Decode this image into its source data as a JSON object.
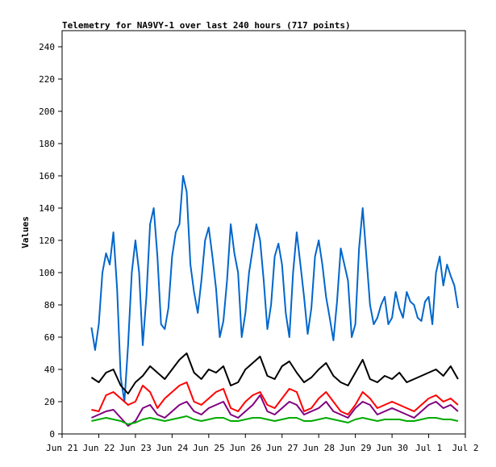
{
  "chart_data": {
    "type": "line",
    "title": "Telemetry for NA9VY-1 over last 240 hours (717 points)",
    "xlabel": "",
    "ylabel": "Values",
    "ylim": [
      0,
      250
    ],
    "yticks": [
      0,
      20,
      40,
      60,
      80,
      100,
      120,
      140,
      160,
      180,
      200,
      220,
      240
    ],
    "x_ticks": [
      "Jun 21",
      "Jun 22",
      "Jun 23",
      "Jun 24",
      "Jun 25",
      "Jun 26",
      "Jun 27",
      "Jun 28",
      "Jun 29",
      "Jun 30",
      "Jul 1",
      "Jul 2"
    ],
    "xlim": [
      "Jun 21",
      "Jul 2"
    ],
    "grid": false,
    "legend": "none",
    "series": [
      {
        "color": "#0066cc",
        "x": [
          21.8,
          21.9,
          22.0,
          22.1,
          22.2,
          22.3,
          22.4,
          22.5,
          22.6,
          22.7,
          22.8,
          22.9,
          23.0,
          23.1,
          23.2,
          23.3,
          23.4,
          23.5,
          23.6,
          23.7,
          23.8,
          23.9,
          24.0,
          24.1,
          24.2,
          24.3,
          24.4,
          24.5,
          24.6,
          24.7,
          24.8,
          24.9,
          25.0,
          25.1,
          25.2,
          25.3,
          25.4,
          25.5,
          25.6,
          25.7,
          25.8,
          25.9,
          26.0,
          26.1,
          26.2,
          26.3,
          26.4,
          26.5,
          26.6,
          26.7,
          26.8,
          26.9,
          27.0,
          27.1,
          27.2,
          27.3,
          27.4,
          27.5,
          27.6,
          27.7,
          27.8,
          27.9,
          28.0,
          28.1,
          28.2,
          28.3,
          28.4,
          28.5,
          28.6,
          28.7,
          28.8,
          28.9,
          29.0,
          29.1,
          29.2,
          29.3,
          29.4,
          29.5,
          29.6,
          29.7,
          29.8,
          29.9,
          30.0,
          30.1,
          30.2,
          30.3,
          30.4,
          30.5,
          30.6,
          30.7,
          30.8,
          30.9,
          31.0,
          31.1,
          31.2,
          31.3,
          31.4,
          31.5,
          31.6,
          31.7,
          31.8
        ],
        "values": [
          66,
          52,
          68,
          100,
          112,
          105,
          125,
          90,
          35,
          20,
          55,
          100,
          120,
          100,
          55,
          85,
          130,
          140,
          110,
          68,
          65,
          78,
          110,
          125,
          130,
          160,
          150,
          105,
          88,
          75,
          95,
          120,
          128,
          110,
          90,
          60,
          70,
          95,
          130,
          112,
          100,
          60,
          75,
          100,
          115,
          130,
          120,
          95,
          65,
          80,
          110,
          118,
          105,
          75,
          60,
          100,
          125,
          105,
          85,
          62,
          78,
          110,
          120,
          105,
          85,
          72,
          58,
          82,
          115,
          105,
          95,
          60,
          68,
          115,
          140,
          110,
          80,
          68,
          72,
          80,
          85,
          68,
          72,
          88,
          78,
          72,
          88,
          82,
          80,
          72,
          70,
          82,
          85,
          68,
          100,
          110,
          92,
          105,
          98,
          92,
          78
        ]
      },
      {
        "color": "#000000",
        "x": [
          21.8,
          22.0,
          22.2,
          22.4,
          22.6,
          22.8,
          23.0,
          23.2,
          23.4,
          23.6,
          23.8,
          24.0,
          24.2,
          24.4,
          24.6,
          24.8,
          25.0,
          25.2,
          25.4,
          25.6,
          25.8,
          26.0,
          26.2,
          26.4,
          26.6,
          26.8,
          27.0,
          27.2,
          27.4,
          27.6,
          27.8,
          28.0,
          28.2,
          28.4,
          28.6,
          28.8,
          29.0,
          29.2,
          29.4,
          29.6,
          29.8,
          30.0,
          30.2,
          30.4,
          30.6,
          30.8,
          31.0,
          31.2,
          31.4,
          31.6,
          31.8
        ],
        "values": [
          35,
          32,
          38,
          40,
          30,
          25,
          32,
          36,
          42,
          38,
          34,
          40,
          46,
          50,
          38,
          34,
          40,
          38,
          42,
          30,
          32,
          40,
          44,
          48,
          36,
          34,
          42,
          45,
          38,
          32,
          35,
          40,
          44,
          36,
          32,
          30,
          38,
          46,
          34,
          32,
          36,
          34,
          38,
          32,
          34,
          36,
          38,
          40,
          36,
          42,
          34
        ]
      },
      {
        "color": "#ff0000",
        "x": [
          21.8,
          22.0,
          22.2,
          22.4,
          22.6,
          22.8,
          23.0,
          23.2,
          23.4,
          23.6,
          23.8,
          24.0,
          24.2,
          24.4,
          24.6,
          24.8,
          25.0,
          25.2,
          25.4,
          25.6,
          25.8,
          26.0,
          26.2,
          26.4,
          26.6,
          26.8,
          27.0,
          27.2,
          27.4,
          27.6,
          27.8,
          28.0,
          28.2,
          28.4,
          28.6,
          28.8,
          29.0,
          29.2,
          29.4,
          29.6,
          29.8,
          30.0,
          30.2,
          30.4,
          30.6,
          30.8,
          31.0,
          31.2,
          31.4,
          31.6,
          31.8
        ],
        "values": [
          15,
          14,
          24,
          26,
          22,
          18,
          20,
          30,
          26,
          16,
          22,
          26,
          30,
          32,
          20,
          18,
          22,
          26,
          28,
          16,
          14,
          20,
          24,
          26,
          18,
          16,
          22,
          28,
          26,
          14,
          16,
          22,
          26,
          20,
          14,
          12,
          18,
          26,
          22,
          16,
          18,
          20,
          18,
          16,
          14,
          18,
          22,
          24,
          20,
          22,
          18
        ]
      },
      {
        "color": "#800080",
        "x": [
          21.8,
          22.0,
          22.2,
          22.4,
          22.6,
          22.8,
          23.0,
          23.2,
          23.4,
          23.6,
          23.8,
          24.0,
          24.2,
          24.4,
          24.6,
          24.8,
          25.0,
          25.2,
          25.4,
          25.6,
          25.8,
          26.0,
          26.2,
          26.4,
          26.6,
          26.8,
          27.0,
          27.2,
          27.4,
          27.6,
          27.8,
          28.0,
          28.2,
          28.4,
          28.6,
          28.8,
          29.0,
          29.2,
          29.4,
          29.6,
          29.8,
          30.0,
          30.2,
          30.4,
          30.6,
          30.8,
          31.0,
          31.2,
          31.4,
          31.6,
          31.8
        ],
        "values": [
          10,
          12,
          14,
          15,
          10,
          5,
          8,
          16,
          18,
          12,
          10,
          14,
          18,
          20,
          14,
          12,
          16,
          18,
          20,
          12,
          10,
          14,
          18,
          24,
          14,
          12,
          16,
          20,
          18,
          12,
          14,
          16,
          20,
          14,
          12,
          10,
          16,
          20,
          18,
          12,
          14,
          16,
          14,
          12,
          10,
          14,
          18,
          20,
          16,
          18,
          14
        ]
      },
      {
        "color": "#00aa00",
        "x": [
          21.8,
          22.0,
          22.2,
          22.4,
          22.6,
          22.8,
          23.0,
          23.2,
          23.4,
          23.6,
          23.8,
          24.0,
          24.2,
          24.4,
          24.6,
          24.8,
          25.0,
          25.2,
          25.4,
          25.6,
          25.8,
          26.0,
          26.2,
          26.4,
          26.6,
          26.8,
          27.0,
          27.2,
          27.4,
          27.6,
          27.8,
          28.0,
          28.2,
          28.4,
          28.6,
          28.8,
          29.0,
          29.2,
          29.4,
          29.6,
          29.8,
          30.0,
          30.2,
          30.4,
          30.6,
          30.8,
          31.0,
          31.2,
          31.4,
          31.6,
          31.8
        ],
        "values": [
          8,
          9,
          10,
          9,
          8,
          6,
          7,
          9,
          10,
          9,
          8,
          9,
          10,
          11,
          9,
          8,
          9,
          10,
          10,
          8,
          8,
          9,
          10,
          10,
          9,
          8,
          9,
          10,
          10,
          8,
          8,
          9,
          10,
          9,
          8,
          7,
          9,
          10,
          9,
          8,
          9,
          9,
          9,
          8,
          8,
          9,
          10,
          10,
          9,
          9,
          8
        ]
      }
    ]
  }
}
